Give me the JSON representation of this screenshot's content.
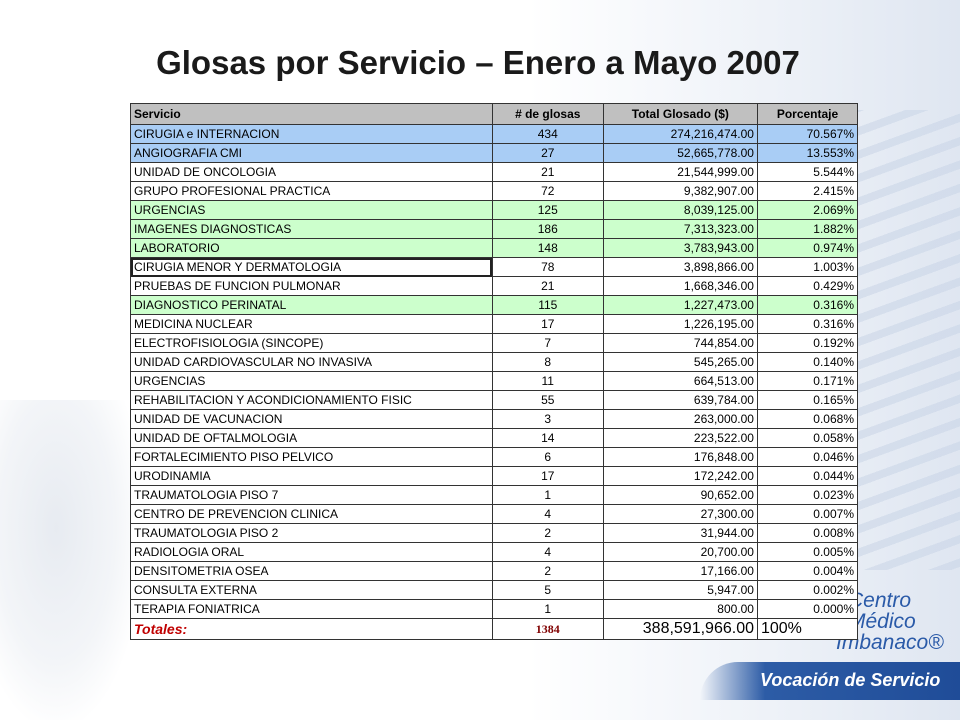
{
  "title": "Glosas por Servicio – Enero a Mayo 2007",
  "table": {
    "header": [
      "Servicio",
      "# de glosas",
      "Total Glosado ($)",
      "Porcentaje"
    ],
    "rows": [
      [
        "CIRUGIA e INTERNACION",
        "434",
        "274,216,474.00",
        "70.567%"
      ],
      [
        "ANGIOGRAFIA CMI",
        "27",
        "52,665,778.00",
        "13.553%"
      ],
      [
        "UNIDAD DE ONCOLOGIA",
        "21",
        "21,544,999.00",
        "5.544%"
      ],
      [
        "GRUPO PROFESIONAL PRACTICA",
        "72",
        "9,382,907.00",
        "2.415%"
      ],
      [
        "URGENCIAS",
        "125",
        "8,039,125.00",
        "2.069%"
      ],
      [
        "IMAGENES DIAGNOSTICAS",
        "186",
        "7,313,323.00",
        "1.882%"
      ],
      [
        "LABORATORIO",
        "148",
        "3,783,943.00",
        "0.974%"
      ],
      [
        "CIRUGIA MENOR Y DERMATOLOGIA",
        "78",
        "3,898,866.00",
        "1.003%"
      ],
      [
        "PRUEBAS DE FUNCION PULMONAR",
        "21",
        "1,668,346.00",
        "0.429%"
      ],
      [
        "DIAGNOSTICO PERINATAL",
        "115",
        "1,227,473.00",
        "0.316%"
      ],
      [
        "MEDICINA NUCLEAR",
        "17",
        "1,226,195.00",
        "0.316%"
      ],
      [
        "ELECTROFISIOLOGIA (SINCOPE)",
        "7",
        "744,854.00",
        "0.192%"
      ],
      [
        "UNIDAD CARDIOVASCULAR NO INVASIVA",
        "8",
        "545,265.00",
        "0.140%"
      ],
      [
        "URGENCIAS",
        "11",
        "664,513.00",
        "0.171%"
      ],
      [
        "REHABILITACION Y ACONDICIONAMIENTO FISIC",
        "55",
        "639,784.00",
        "0.165%"
      ],
      [
        "UNIDAD DE VACUNACION",
        "3",
        "263,000.00",
        "0.068%"
      ],
      [
        "UNIDAD DE OFTALMOLOGIA",
        "14",
        "223,522.00",
        "0.058%"
      ],
      [
        "FORTALECIMIENTO PISO PELVICO",
        "6",
        "176,848.00",
        "0.046%"
      ],
      [
        "URODINAMIA",
        "17",
        "172,242.00",
        "0.044%"
      ],
      [
        "TRAUMATOLOGIA PISO 7",
        "1",
        "90,652.00",
        "0.023%"
      ],
      [
        "CENTRO DE PREVENCION CLINICA",
        "4",
        "27,300.00",
        "0.007%"
      ],
      [
        "TRAUMATOLOGIA PISO 2",
        "2",
        "31,944.00",
        "0.008%"
      ],
      [
        "RADIOLOGIA ORAL",
        "4",
        "20,700.00",
        "0.005%"
      ],
      [
        "DENSITOMETRIA OSEA",
        "2",
        "17,166.00",
        "0.004%"
      ],
      [
        "CONSULTA EXTERNA",
        "5",
        "5,947.00",
        "0.002%"
      ],
      [
        "TERAPIA FONIATRICA",
        "1",
        "800.00",
        "0.000%"
      ]
    ],
    "totals": [
      "Totales:",
      "1384",
      "388,591,966.00",
      "100%"
    ]
  },
  "logo": {
    "line1": "Centro",
    "line2": "Médico",
    "line3": "Imbanaco®",
    "slogan": "Vocación de Servicio"
  }
}
